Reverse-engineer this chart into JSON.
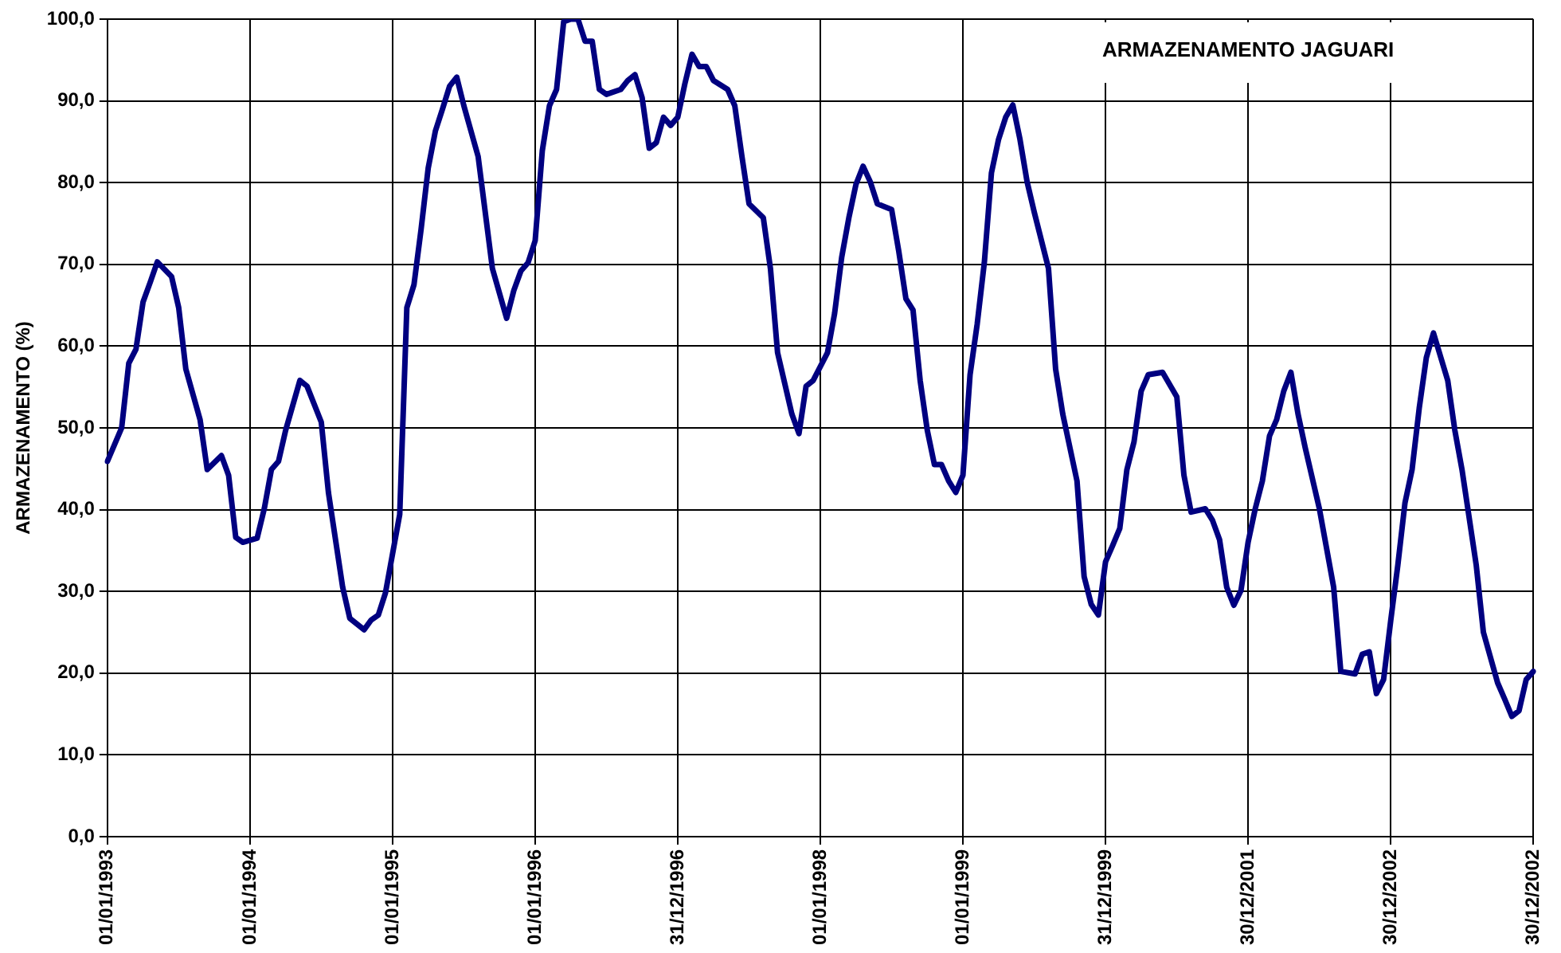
{
  "chart_data": {
    "type": "line",
    "title": "ARMAZENAMENTO JAGUARI",
    "ylabel": "ARMAZENAMENTO (%)",
    "categories": [
      "01/01/1993",
      null,
      null,
      null,
      null,
      null,
      null,
      null,
      null,
      null,
      null,
      null,
      null,
      null,
      null,
      null,
      null,
      null,
      null,
      null,
      "01/01/1994",
      null,
      null,
      null,
      null,
      null,
      null,
      null,
      null,
      null,
      null,
      null,
      null,
      null,
      null,
      null,
      null,
      null,
      null,
      null,
      "01/01/1995",
      null,
      null,
      null,
      null,
      null,
      null,
      null,
      null,
      null,
      null,
      null,
      null,
      null,
      null,
      null,
      null,
      null,
      null,
      null,
      "01/01/1996",
      null,
      null,
      null,
      null,
      null,
      null,
      null,
      null,
      null,
      null,
      null,
      null,
      null,
      null,
      null,
      null,
      null,
      null,
      null,
      "31/12/1996",
      null,
      null,
      null,
      null,
      null,
      null,
      null,
      null,
      null,
      null,
      null,
      null,
      null,
      null,
      null,
      null,
      null,
      null,
      null,
      "01/01/1998",
      null,
      null,
      null,
      null,
      null,
      null,
      null,
      null,
      null,
      null,
      null,
      null,
      null,
      null,
      null,
      null,
      null,
      null,
      null,
      "01/01/1999",
      null,
      null,
      null,
      null,
      null,
      null,
      null,
      null,
      null,
      null,
      null,
      null,
      null,
      null,
      null,
      null,
      null,
      null,
      null,
      "31/12/1999",
      null,
      null,
      null,
      null,
      null,
      null,
      null,
      null,
      null,
      null,
      null,
      null,
      null,
      null,
      null,
      null,
      null,
      null,
      null,
      "30/12/2001",
      null,
      null,
      null,
      null,
      null,
      null,
      null,
      null,
      null,
      null,
      null,
      null,
      null,
      null,
      null,
      null,
      null,
      null,
      null,
      "30/12/2002",
      null,
      null,
      null,
      null,
      null,
      null,
      null,
      null,
      null,
      null,
      null,
      null,
      null,
      null,
      null,
      null,
      null,
      null,
      null,
      "30/12/2002"
    ],
    "ylim": [
      0,
      100
    ],
    "yticks": [
      {
        "value": 0,
        "label": "0,0"
      },
      {
        "value": 10,
        "label": "10,0"
      },
      {
        "value": 20,
        "label": "20,0"
      },
      {
        "value": 30,
        "label": "30,0"
      },
      {
        "value": 40,
        "label": "40,0"
      },
      {
        "value": 50,
        "label": "50,0"
      },
      {
        "value": 60,
        "label": "60,0"
      },
      {
        "value": 70,
        "label": "70,0"
      },
      {
        "value": 80,
        "label": "80,0"
      },
      {
        "value": 90,
        "label": "90,0"
      },
      {
        "value": 100,
        "label": "100,0"
      }
    ],
    "grid": true,
    "marker": "none",
    "line_style": "solid",
    "series": [
      {
        "color": "#000080",
        "values": [
          45.9,
          null,
          50,
          57.9,
          59.6,
          65.4,
          67.8,
          70.3,
          null,
          68.5,
          64.7,
          57.2,
          null,
          51,
          44.9,
          null,
          46.6,
          44.2,
          36.6,
          36,
          null,
          36.5,
          40.1,
          44.9,
          45.9,
          49.7,
          null,
          55.8,
          55.1,
          null,
          50.7,
          42.1,
          null,
          30.5,
          26.7,
          null,
          25.3,
          26.5,
          27.1,
          29.8,
          34.6,
          39.4,
          64.7,
          67.5,
          74.3,
          81.8,
          86.3,
          89,
          91.8,
          92.9,
          89.4,
          null,
          83.2,
          null,
          69.5,
          null,
          63.4,
          66.8,
          69.2,
          70.2,
          72.9,
          83.9,
          89.4,
          91.4,
          99.7,
          100,
          100,
          97.3,
          97.3,
          91.4,
          90.8,
          null,
          91.4,
          92.5,
          93.2,
          90.4,
          84.2,
          84.9,
          88,
          87,
          88,
          92.1,
          95.7,
          94.2,
          94.2,
          92.5,
          null,
          91.4,
          89.4,
          83.2,
          77.4,
          null,
          75.7,
          69.5,
          59.2,
          null,
          51.7,
          49.3,
          55.1,
          55.8,
          null,
          59.2,
          64,
          70.9,
          75.7,
          79.8,
          82,
          80.1,
          77.4,
          null,
          76.7,
          71.6,
          65.8,
          64.4,
          55.8,
          49.7,
          45.5,
          45.5,
          43.5,
          42.1,
          44.2,
          56.5,
          62.7,
          70.2,
          81.2,
          85.3,
          88,
          89.5,
          85.3,
          80.1,
          76.4,
          null,
          69.5,
          57.2,
          51.7,
          null,
          43.5,
          31.8,
          28.4,
          27.1,
          33.6,
          35.6,
          37.7,
          44.9,
          48.3,
          54.5,
          56.5,
          null,
          56.8,
          null,
          53.8,
          44.2,
          39.7,
          null,
          40.1,
          38.7,
          36.3,
          30.5,
          28.3,
          30.1,
          36,
          40.1,
          43.5,
          49,
          51,
          54.5,
          56.8,
          51.7,
          47.6,
          null,
          40.1,
          null,
          30.5,
          20.2,
          null,
          19.9,
          22.3,
          22.6,
          17.5,
          19.2,
          26.4,
          33.2,
          40.8,
          44.9,
          52.4,
          58.6,
          61.6,
          null,
          55.8,
          49.7,
          44.9,
          null,
          33.2,
          25,
          null,
          18.8,
          16.8,
          14.7,
          15.4,
          19.2,
          20.2
        ]
      }
    ]
  }
}
